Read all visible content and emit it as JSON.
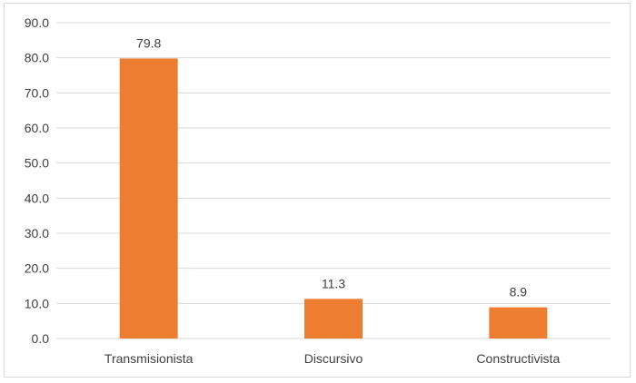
{
  "chart_data": {
    "type": "bar",
    "title": "",
    "xlabel": "",
    "ylabel": "",
    "categories": [
      "Transmisionista",
      "Discursivo",
      "Constructivista"
    ],
    "values": [
      79.8,
      11.3,
      8.9
    ],
    "value_labels": [
      "79.8",
      "11.3",
      "8.9"
    ],
    "ylim": [
      0,
      90
    ],
    "y_ticks": [
      0,
      10,
      20,
      30,
      40,
      50,
      60,
      70,
      80,
      90
    ],
    "y_tick_labels": [
      "0.0",
      "10.0",
      "20.0",
      "30.0",
      "40.0",
      "50.0",
      "60.0",
      "70.0",
      "80.0",
      "90.0"
    ],
    "grid": true,
    "legend": "none",
    "colors": {
      "bar": "#ed7d31",
      "grid": "#d9d9d9",
      "text": "#404040"
    }
  }
}
